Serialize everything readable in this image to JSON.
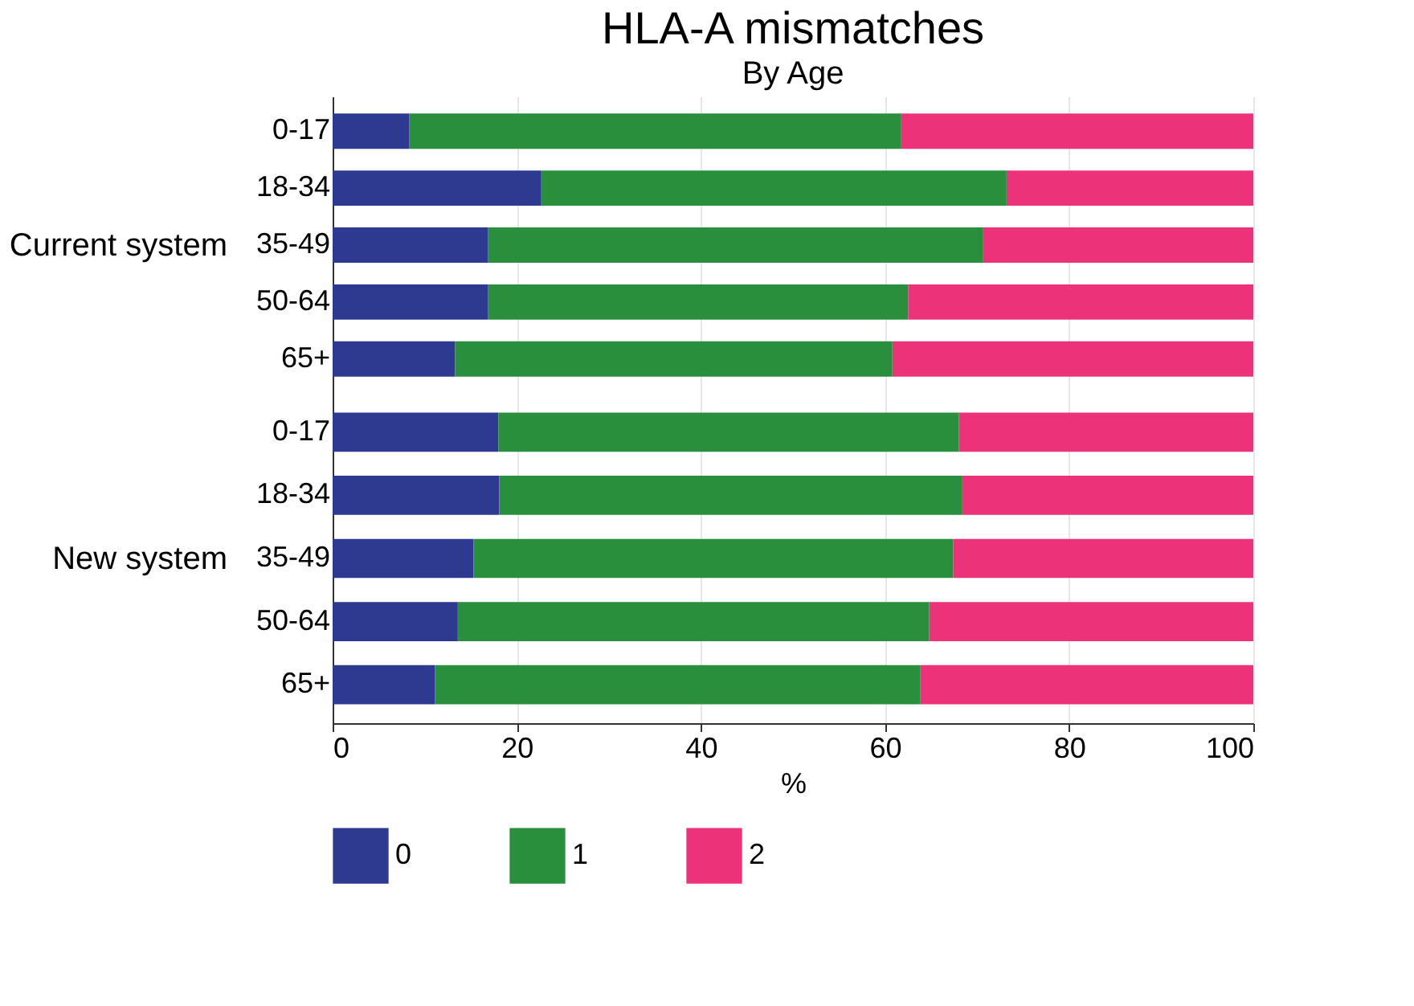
{
  "chart_data": [
    {
      "type": "bar",
      "orientation": "horizontal",
      "stacked": true,
      "title": "HLA-A mismatches",
      "subtitle": "By Age",
      "ylabel": "Current system",
      "categories": [
        "0-17",
        "18-34",
        "35-49",
        "50-64",
        "65+"
      ],
      "series": [
        {
          "name": "0",
          "color": "#2e3a8f",
          "values": [
            8.3,
            22.6,
            16.9,
            16.9,
            13.3
          ]
        },
        {
          "name": "1",
          "color": "#2a8f3c",
          "values": [
            53.4,
            50.6,
            53.7,
            45.6,
            47.5
          ]
        },
        {
          "name": "2",
          "color": "#ec337a",
          "values": [
            38.3,
            26.8,
            29.4,
            37.5,
            39.2
          ]
        }
      ],
      "xlim": [
        0,
        100
      ],
      "xticks": [
        0,
        20,
        40,
        60,
        80,
        100
      ],
      "grid": "x",
      "tick_labels": "y",
      "legend": "bottom"
    },
    {
      "type": "bar",
      "orientation": "horizontal",
      "stacked": true,
      "ylabel": "New system",
      "xlabel": "%",
      "categories": [
        "0-17",
        "18-34",
        "35-49",
        "50-64",
        "65+"
      ],
      "series": [
        {
          "name": "0",
          "color": "#2e3a8f",
          "values": [
            18.0,
            18.1,
            15.3,
            13.6,
            11.1
          ]
        },
        {
          "name": "1",
          "color": "#2a8f3c",
          "values": [
            50.0,
            50.3,
            52.1,
            51.2,
            52.7
          ]
        },
        {
          "name": "2",
          "color": "#ec337a",
          "values": [
            32.0,
            31.6,
            32.6,
            35.2,
            36.2
          ]
        }
      ],
      "xlim": [
        0,
        100
      ],
      "xticks": [
        0,
        20,
        40,
        60,
        80,
        100
      ],
      "grid": "x",
      "legend": "bottom"
    }
  ]
}
